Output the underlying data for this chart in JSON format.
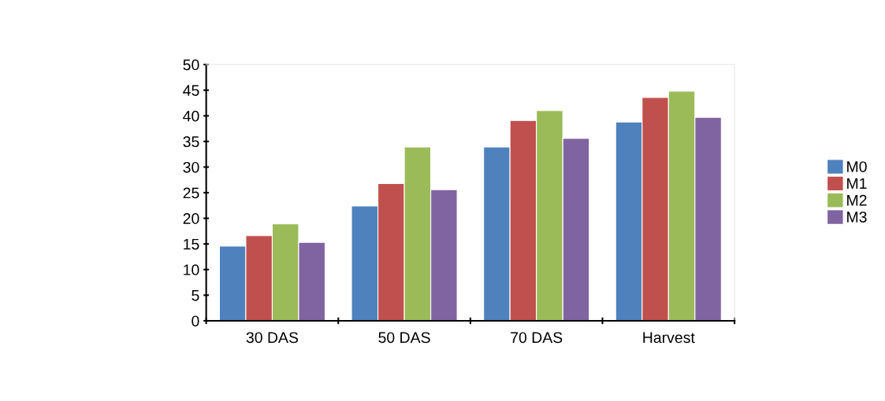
{
  "chart_data": {
    "type": "bar",
    "categories": [
      "30 DAS",
      "50 DAS",
      "70 DAS",
      "Harvest"
    ],
    "series": [
      {
        "name": "M0",
        "color": "#4f81bd",
        "values": [
          14.6,
          22.4,
          33.9,
          38.8
        ]
      },
      {
        "name": "M1",
        "color": "#c0504d",
        "values": [
          16.6,
          26.8,
          39.1,
          43.6
        ]
      },
      {
        "name": "M2",
        "color": "#9bbb59",
        "values": [
          18.9,
          33.9,
          41.0,
          44.8
        ]
      },
      {
        "name": "M3",
        "color": "#8064a2",
        "values": [
          15.3,
          25.6,
          35.6,
          39.7
        ]
      }
    ],
    "ylim": [
      0,
      50
    ],
    "yticks": [
      0,
      5,
      10,
      15,
      20,
      25,
      30,
      35,
      40,
      45,
      50
    ],
    "grid": false,
    "legend": "right"
  }
}
